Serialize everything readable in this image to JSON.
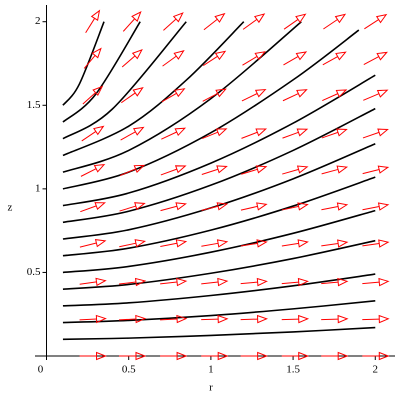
{
  "chart_data": {
    "type": "field",
    "xlabel": "r",
    "ylabel": "z",
    "xlim": [
      -0.07,
      2.12
    ],
    "ylim": [
      0,
      2.1
    ],
    "xticks": [
      0,
      0.5,
      1,
      1.5,
      2
    ],
    "yticks": [
      0.5,
      1,
      1.5,
      2
    ],
    "line_color": "#000000",
    "arrow_color": "#ff0000",
    "series": [
      {
        "x": [
          0.1,
          0.5,
          1.0,
          1.5,
          2.0
        ],
        "values": [
          0.1,
          0.107,
          0.123,
          0.144,
          0.17
        ]
      },
      {
        "x": [
          0.1,
          0.5,
          1.0,
          1.5,
          2.0
        ],
        "values": [
          0.2,
          0.213,
          0.242,
          0.282,
          0.33
        ]
      },
      {
        "x": [
          0.1,
          0.5,
          1.0,
          1.5,
          2.0
        ],
        "values": [
          0.3,
          0.318,
          0.362,
          0.42,
          0.49
        ]
      },
      {
        "x": [
          0.1,
          0.5,
          1.0,
          1.5,
          2.0
        ],
        "values": [
          0.4,
          0.428,
          0.495,
          0.583,
          0.69
        ]
      },
      {
        "x": [
          0.1,
          0.5,
          1.0,
          1.5,
          2.0
        ],
        "values": [
          0.5,
          0.536,
          0.621,
          0.734,
          0.87
        ]
      },
      {
        "x": [
          0.1,
          0.5,
          1.0,
          1.5,
          2.0
        ],
        "values": [
          0.6,
          0.645,
          0.753,
          0.897,
          1.07
        ]
      },
      {
        "x": [
          0.1,
          0.5,
          1.0,
          1.5,
          2.0
        ],
        "values": [
          0.7,
          0.755,
          0.886,
          1.06,
          1.27
        ]
      },
      {
        "x": [
          0.1,
          0.5,
          1.0,
          1.5,
          2.0
        ],
        "values": [
          0.8,
          0.866,
          1.022,
          1.23,
          1.48
        ]
      },
      {
        "x": [
          0.1,
          0.5,
          1.0,
          1.5,
          2.0
        ],
        "values": [
          0.9,
          0.975,
          1.154,
          1.393,
          1.68
        ]
      },
      {
        "x": [
          0.1,
          0.5,
          1.0,
          1.5,
          1.9
        ],
        "values": [
          1.0,
          1.1,
          1.336,
          1.652,
          1.95
        ]
      },
      {
        "x": [
          0.1,
          0.5,
          1.0,
          1.55
        ],
        "values": [
          1.1,
          1.23,
          1.54,
          2.0
        ]
      },
      {
        "x": [
          0.1,
          0.5,
          0.85,
          1.2
        ],
        "values": [
          1.2,
          1.375,
          1.65,
          2.0
        ]
      },
      {
        "x": [
          0.1,
          0.4,
          0.85
        ],
        "values": [
          1.3,
          1.477,
          2.0
        ]
      },
      {
        "x": [
          0.1,
          0.3,
          0.57
        ],
        "values": [
          1.4,
          1.567,
          2.0
        ]
      },
      {
        "x": [
          0.1,
          0.2,
          0.35
        ],
        "values": [
          1.5,
          1.627,
          2.0
        ]
      }
    ],
    "arrows": {
      "r": [
        0.28,
        0.52,
        0.77,
        1.02,
        1.26,
        1.51,
        1.75,
        2.0
      ],
      "z": [
        0,
        0.22,
        0.44,
        0.67,
        0.89,
        1.11,
        1.33,
        1.56,
        1.78,
        2.0
      ],
      "angle": [
        [
          0,
          0,
          0,
          0,
          0,
          0,
          0,
          0
        ],
        [
          3,
          3,
          3,
          2,
          2,
          2,
          2,
          2
        ],
        [
          8,
          7,
          6,
          6,
          5,
          5,
          5,
          5
        ],
        [
          14,
          12,
          11,
          10,
          9,
          9,
          8,
          8
        ],
        [
          20,
          17,
          15,
          14,
          13,
          12,
          11,
          11
        ],
        [
          27,
          23,
          20,
          18,
          17,
          16,
          15,
          14
        ],
        [
          34,
          29,
          25,
          22,
          21,
          20,
          19,
          19
        ],
        [
          42,
          35,
          30,
          28,
          26,
          25,
          24,
          23
        ],
        [
          50,
          41,
          36,
          33,
          31,
          30,
          29,
          28
        ],
        [
          58,
          48,
          42,
          38,
          36,
          35,
          34,
          33
        ]
      ]
    }
  }
}
